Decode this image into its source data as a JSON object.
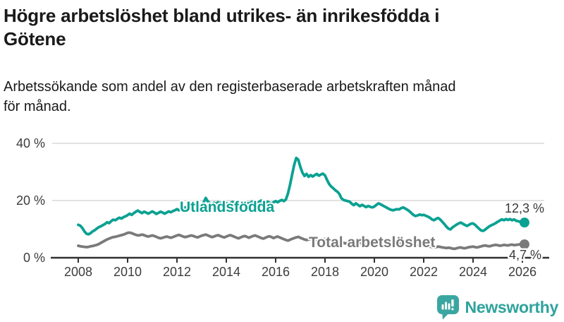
{
  "header": {
    "title": "Högre arbetslöshet bland utrikes- än inrikesfödda i Götene",
    "title_lines": [
      "Högre arbetslöshet bland utrikes- än inrikesfödda i",
      "Götene"
    ],
    "subtitle": "Arbetssökande som andel av den registerbaserade arbetskraften månad för månad.",
    "subtitle_lines": [
      "Arbetssökande som andel av den registerbaserade arbetskraften månad",
      "för månad."
    ]
  },
  "branding": {
    "name": "Newsworthy",
    "icon": "newsworthy-speech-bubble-chart-icon",
    "icon_color": "#3ba6a1",
    "text_color": "#2ea39c"
  },
  "colors": {
    "background": "#ffffff",
    "title": "#1a1a1a",
    "axis": "#303030",
    "grid": "#d9d9d9",
    "tick_label": "#3c3c3c",
    "value_label": "#393939",
    "series_foreign": "#0ba192",
    "series_total": "#7a7a7a"
  },
  "chart_data": {
    "type": "line",
    "title": "Högre arbetslöshet bland utrikes- än inrikesfödda i Götene",
    "subtitle": "Arbetssökande som andel av den registerbaserade arbetskraften månad för månad.",
    "unit": "%",
    "frequency": "monthly",
    "x_start_year": 2008,
    "x_start_month": 1,
    "x_end_label": "2026",
    "x_ticks": [
      2008,
      2010,
      2012,
      2014,
      2016,
      2018,
      2020,
      2022,
      2024,
      2026
    ],
    "y_ticks": [
      {
        "value": 0,
        "label": "0 %"
      },
      {
        "value": 20,
        "label": "20 %"
      },
      {
        "value": 40,
        "label": "40 %"
      }
    ],
    "ylim": [
      0,
      44
    ],
    "grid": "horizontal",
    "legend": "inline-labels",
    "series": [
      {
        "name": "Utlandsfödda",
        "color": "#0ba192",
        "end_value": 12.3,
        "end_label": "12,3 %",
        "values": [
          11.5,
          11.2,
          10.4,
          9.2,
          8.4,
          8.2,
          8.6,
          9.2,
          9.6,
          10.2,
          10.7,
          11.0,
          11.4,
          11.8,
          12.4,
          12.1,
          12.8,
          13.3,
          13.1,
          13.6,
          14.0,
          13.7,
          14.2,
          14.5,
          14.9,
          15.4,
          15.0,
          15.6,
          16.1,
          16.5,
          16.0,
          15.6,
          16.1,
          15.8,
          15.4,
          15.8,
          16.2,
          15.8,
          15.3,
          15.7,
          16.1,
          15.8,
          15.4,
          15.8,
          16.2,
          15.9,
          16.3,
          16.6,
          17.0,
          16.6,
          17.3,
          17.8,
          17.4,
          17.9,
          17.5,
          18.0,
          17.6,
          17.3,
          17.7,
          18.1,
          18.5,
          19.3,
          20.9,
          19.7,
          19.1,
          18.7,
          19.2,
          18.9,
          19.4,
          19.0,
          19.3,
          18.9,
          19.1,
          18.6,
          19.0,
          19.5,
          19.0,
          18.6,
          19.1,
          19.6,
          19.1,
          18.7,
          19.2,
          18.9,
          19.3,
          19.8,
          19.4,
          19.0,
          19.5,
          20.0,
          19.5,
          19.1,
          19.6,
          19.2,
          18.9,
          19.4,
          19.8,
          19.4,
          19.9,
          20.2,
          19.8,
          20.4,
          22.5,
          25.5,
          29.0,
          32.5,
          34.9,
          34.3,
          31.8,
          29.8,
          28.6,
          29.3,
          28.3,
          28.9,
          28.4,
          28.9,
          29.3,
          28.7,
          29.1,
          29.4,
          28.8,
          27.2,
          25.8,
          24.9,
          24.3,
          23.6,
          23.1,
          22.3,
          20.8,
          20.2,
          20.0,
          19.8,
          19.6,
          18.9,
          18.4,
          19.0,
          18.5,
          18.0,
          18.5,
          18.1,
          17.7,
          18.1,
          17.8,
          17.6,
          17.9,
          18.5,
          19.0,
          18.7,
          18.3,
          17.9,
          17.5,
          17.1,
          16.8,
          16.6,
          16.8,
          17.0,
          16.9,
          17.3,
          17.6,
          17.2,
          16.8,
          16.3,
          15.6,
          15.0,
          14.6,
          14.8,
          15.1,
          14.9,
          15.0,
          14.7,
          14.4,
          14.0,
          13.4,
          13.1,
          13.6,
          13.9,
          13.4,
          12.6,
          11.8,
          10.9,
          10.2,
          9.9,
          10.6,
          11.1,
          11.6,
          12.0,
          12.3,
          11.9,
          11.5,
          11.1,
          11.5,
          11.9,
          12.0,
          11.5,
          10.8,
          10.1,
          9.5,
          9.4,
          9.9,
          10.5,
          11.0,
          11.4,
          11.7,
          12.1,
          12.6,
          13.0,
          13.4,
          13.1,
          13.5,
          13.2,
          13.5,
          13.1,
          13.4,
          12.9,
          12.8,
          12.5,
          12.1,
          12.3
        ]
      },
      {
        "name": "Total arbetslöshet",
        "color": "#7a7a7a",
        "end_value": 4.7,
        "end_label": "4,7 %",
        "values": [
          4.2,
          4.0,
          3.9,
          3.8,
          3.7,
          3.8,
          4.0,
          4.1,
          4.3,
          4.5,
          4.8,
          5.2,
          5.6,
          6.0,
          6.4,
          6.7,
          7.0,
          7.2,
          7.3,
          7.5,
          7.7,
          7.9,
          8.1,
          8.4,
          8.7,
          8.8,
          8.6,
          8.3,
          8.0,
          7.8,
          7.9,
          8.1,
          7.9,
          7.6,
          7.4,
          7.6,
          7.8,
          7.6,
          7.3,
          7.0,
          6.8,
          7.0,
          7.2,
          7.4,
          7.2,
          7.0,
          7.2,
          7.5,
          7.8,
          8.0,
          7.7,
          7.4,
          7.2,
          7.4,
          7.6,
          7.8,
          7.6,
          7.3,
          7.1,
          7.4,
          7.7,
          7.9,
          8.1,
          7.8,
          7.5,
          7.2,
          7.4,
          7.7,
          7.9,
          7.6,
          7.3,
          7.1,
          7.4,
          7.7,
          7.9,
          7.6,
          7.3,
          7.0,
          6.8,
          7.1,
          7.4,
          7.6,
          7.3,
          7.0,
          7.3,
          7.6,
          7.8,
          7.5,
          7.2,
          6.9,
          6.7,
          7.0,
          7.3,
          7.5,
          7.2,
          6.9,
          7.2,
          7.4,
          7.1,
          6.8,
          6.5,
          6.2,
          6.0,
          6.3,
          6.6,
          6.9,
          7.1,
          7.3,
          7.0,
          6.7,
          6.4,
          6.2,
          6.4,
          6.6,
          6.8,
          6.6,
          6.3,
          6.0,
          6.2,
          6.4,
          6.6,
          6.3,
          6.0,
          5.8,
          5.5,
          5.3,
          5.5,
          5.7,
          5.5,
          5.2,
          5.0,
          5.2,
          5.4,
          5.2,
          5.0,
          4.8,
          5.0,
          5.2,
          5.0,
          4.8,
          4.6,
          4.8,
          5.0,
          5.2,
          5.2,
          5.5,
          5.8,
          6.0,
          5.8,
          5.6,
          5.4,
          5.2,
          5.0,
          4.9,
          4.8,
          4.9,
          5.0,
          4.9,
          4.7,
          4.6,
          4.7,
          4.8,
          4.7,
          4.6,
          4.5,
          4.4,
          4.5,
          4.6,
          4.4,
          4.2,
          4.0,
          3.9,
          3.7,
          3.6,
          3.7,
          3.9,
          3.8,
          3.6,
          3.5,
          3.4,
          3.5,
          3.4,
          3.2,
          3.1,
          3.3,
          3.5,
          3.6,
          3.4,
          3.3,
          3.5,
          3.7,
          3.8,
          3.9,
          3.7,
          3.6,
          3.8,
          4.0,
          4.2,
          4.3,
          4.1,
          4.0,
          4.2,
          4.4,
          4.5,
          4.4,
          4.2,
          4.3,
          4.5,
          4.4,
          4.3,
          4.5,
          4.6,
          4.4,
          4.5,
          4.6,
          4.7,
          4.6,
          4.7
        ]
      }
    ]
  }
}
